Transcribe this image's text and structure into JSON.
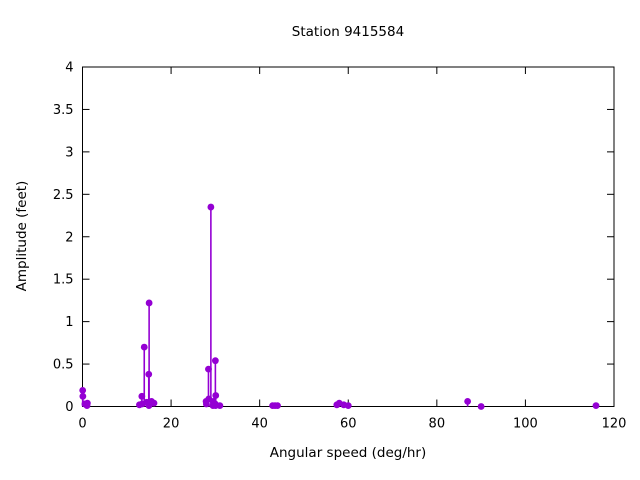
{
  "figure": {
    "background": "#ffffff",
    "text_color": "#000000"
  },
  "chart_data": {
    "type": "scatter",
    "style": "impulse-stems-with-points",
    "title": "Station 9415584",
    "xlabel": "Angular speed (deg/hr)",
    "ylabel": "Amplitude (feet)",
    "xlim": [
      0,
      120
    ],
    "ylim": [
      0,
      4
    ],
    "xticks": [
      0,
      20,
      40,
      60,
      80,
      100,
      120
    ],
    "yticks": [
      0,
      0.5,
      1,
      1.5,
      2,
      2.5,
      3,
      3.5,
      4
    ],
    "grid": false,
    "legend": "none",
    "marker_color": "#9400d3",
    "axis_color": "#000000",
    "series": [
      {
        "name": "harmonic-constituent-amplitudes",
        "points": [
          [
            0.041,
            0.19
          ],
          [
            0.082,
            0.12
          ],
          [
            0.544,
            0.03
          ],
          [
            1.016,
            0.01
          ],
          [
            1.098,
            0.04
          ],
          [
            12.855,
            0.02
          ],
          [
            13.399,
            0.12
          ],
          [
            13.472,
            0.03
          ],
          [
            13.943,
            0.7
          ],
          [
            14.497,
            0.05
          ],
          [
            14.959,
            0.38
          ],
          [
            15.0,
            0.01
          ],
          [
            15.041,
            1.22
          ],
          [
            15.585,
            0.06
          ],
          [
            16.139,
            0.04
          ],
          [
            27.895,
            0.06
          ],
          [
            27.968,
            0.03
          ],
          [
            28.44,
            0.44
          ],
          [
            28.513,
            0.09
          ],
          [
            28.984,
            2.35
          ],
          [
            29.456,
            0.01
          ],
          [
            29.528,
            0.06
          ],
          [
            29.959,
            0.03
          ],
          [
            30.0,
            0.54
          ],
          [
            30.041,
            0.01
          ],
          [
            30.082,
            0.13
          ],
          [
            31.016,
            0.01
          ],
          [
            42.927,
            0.01
          ],
          [
            43.476,
            0.01
          ],
          [
            44.025,
            0.01
          ],
          [
            57.424,
            0.02
          ],
          [
            57.968,
            0.04
          ],
          [
            58.984,
            0.02
          ],
          [
            60.0,
            0.01
          ],
          [
            86.952,
            0.06
          ],
          [
            90.0,
            0.0
          ],
          [
            115.936,
            0.01
          ]
        ]
      }
    ]
  }
}
